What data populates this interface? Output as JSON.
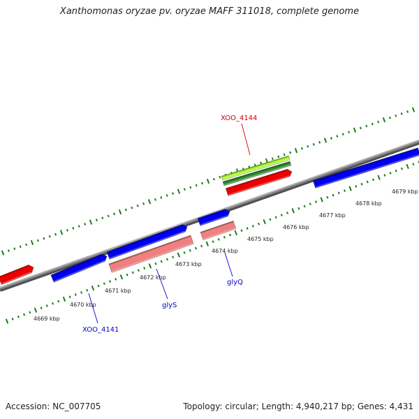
{
  "title": "Xanthomonas oryzae pv. oryzae MAFF 311018, complete genome",
  "footer": {
    "accession": "Accession: NC_007705",
    "summary": "Topology: circular; Length: 4,940,217 bp; Genes: 4,431"
  },
  "colors": {
    "backbone": "#808080",
    "ticks": "#1a7a1a",
    "cds_forward": "#0000ee",
    "cds_reverse": "#ee0000",
    "trna": "#f08080",
    "misc_light": "#adff2f",
    "misc_dark": "#2e8b2e",
    "label_blue": "#0000cc",
    "label_red": "#cc0000"
  },
  "scale": {
    "unit": "kbp",
    "labels": [
      "4669 kbp",
      "4670 kbp",
      "4671 kbp",
      "4672 kbp",
      "4673 kbp",
      "4674 kbp",
      "4675 kbp",
      "4676 kbp",
      "4677 kbp",
      "4678 kbp",
      "4679 kbp"
    ]
  },
  "gene_labels": [
    {
      "text": "XOO_4144",
      "color": "red"
    },
    {
      "text": "glyQ",
      "color": "blue"
    },
    {
      "text": "glyS",
      "color": "blue"
    },
    {
      "text": "XOO_4141",
      "color": "blue"
    }
  ],
  "features": [
    {
      "type": "cds_forward",
      "strand": "+"
    },
    {
      "type": "cds_forward",
      "strand": "+"
    },
    {
      "type": "cds_forward",
      "strand": "+"
    },
    {
      "type": "cds_forward",
      "strand": "+"
    },
    {
      "type": "cds_forward",
      "strand": "+"
    },
    {
      "type": "cds_reverse",
      "strand": "-"
    },
    {
      "type": "cds_reverse",
      "strand": "-"
    },
    {
      "type": "trna",
      "strand": "-"
    },
    {
      "type": "trna",
      "strand": "-"
    },
    {
      "type": "misc_light",
      "strand": "+"
    },
    {
      "type": "misc_dark",
      "strand": "+"
    }
  ]
}
